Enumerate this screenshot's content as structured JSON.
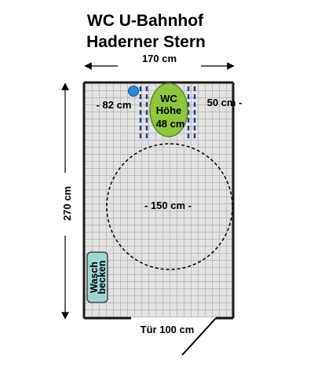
{
  "title": {
    "line1": "WC U-Bahnhof",
    "line2": "Haderner Stern"
  },
  "dimensions": {
    "width_label": "170 cm",
    "height_label": "270 cm",
    "left_gap_label": "- 82 cm",
    "right_gap_label": "50 cm -",
    "turning_circle_label": "- 150 cm -",
    "door_label": "Tür 100 cm"
  },
  "fixtures": {
    "wc_line1": "WC",
    "wc_line2": "Höhe",
    "wc_line3": "48 cm",
    "sink_line1": "Wasch",
    "sink_line2": "becken"
  },
  "colors": {
    "wc_fill": "#8dc63f",
    "sink_fill": "#9fd6d2",
    "handle_fill": "#2f88d6",
    "grab_bar": "#2b3b8f",
    "tile_bg": "#e2e2e2",
    "tile_line": "#9a9a9a",
    "wall": "#1a1a1a"
  }
}
